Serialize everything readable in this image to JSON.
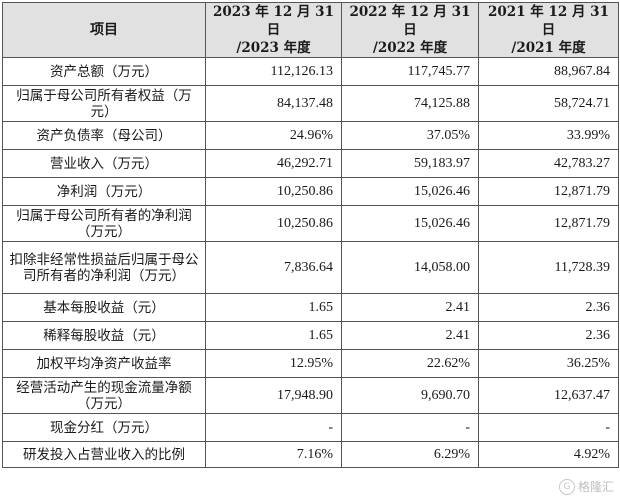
{
  "table": {
    "headers": [
      "项目",
      "2023 年 12 月 31 日\n/2023 年度",
      "2022 年 12 月 31 日\n/2022 年度",
      "2021 年 12 月 31 日\n/2021 年度"
    ],
    "rows": [
      {
        "label": "资产总额（万元）",
        "v2023": "112,126.13",
        "v2022": "117,745.77",
        "v2021": "88,967.84"
      },
      {
        "label": "归属于母公司所有者权益（万元）",
        "v2023": "84,137.48",
        "v2022": "74,125.88",
        "v2021": "58,724.71"
      },
      {
        "label": "资产负债率（母公司）",
        "v2023": "24.96%",
        "v2022": "37.05%",
        "v2021": "33.99%"
      },
      {
        "label": "营业收入（万元）",
        "v2023": "46,292.71",
        "v2022": "59,183.97",
        "v2021": "42,783.27"
      },
      {
        "label": "净利润（万元）",
        "v2023": "10,250.86",
        "v2022": "15,026.46",
        "v2021": "12,871.79"
      },
      {
        "label": "归属于母公司所有者的净利润（万元）",
        "v2023": "10,250.86",
        "v2022": "15,026.46",
        "v2021": "12,871.79"
      },
      {
        "label": "扣除非经常性损益后归属于母公司所有者的净利润（万元）",
        "v2023": "7,836.64",
        "v2022": "14,058.00",
        "v2021": "11,728.39"
      },
      {
        "label": "基本每股收益（元）",
        "v2023": "1.65",
        "v2022": "2.41",
        "v2021": "2.36"
      },
      {
        "label": "稀释每股收益（元）",
        "v2023": "1.65",
        "v2022": "2.41",
        "v2021": "2.36"
      },
      {
        "label": "加权平均净资产收益率",
        "v2023": "12.95%",
        "v2022": "22.62%",
        "v2021": "36.25%"
      },
      {
        "label": "经营活动产生的现金流量净额（万元）",
        "v2023": "17,948.90",
        "v2022": "9,690.70",
        "v2021": "12,637.47"
      },
      {
        "label": "现金分红（万元）",
        "v2023": "-",
        "v2022": "-",
        "v2021": "-"
      },
      {
        "label": "研发投入占营业收入的比例",
        "v2023": "7.16%",
        "v2022": "6.29%",
        "v2021": "4.92%"
      }
    ]
  },
  "watermark": {
    "text": "格隆汇"
  }
}
